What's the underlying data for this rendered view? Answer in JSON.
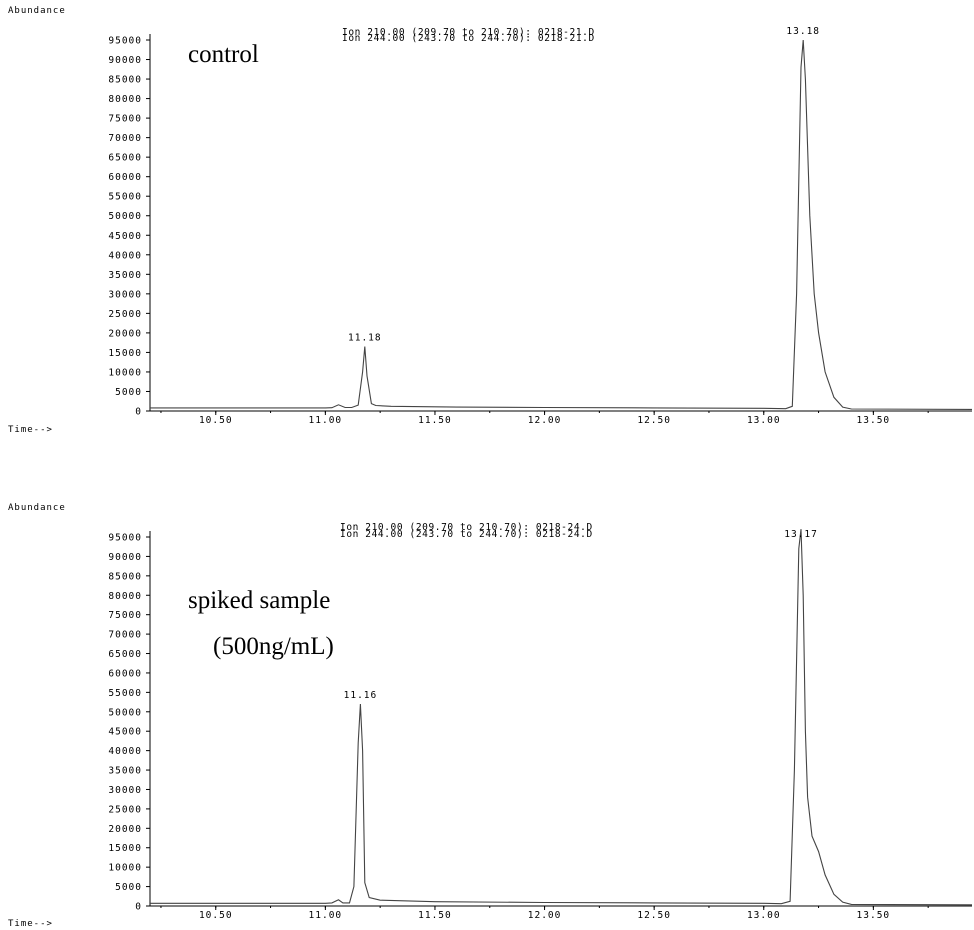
{
  "chart_data": [
    {
      "type": "line",
      "ylabel": "Abundance",
      "xlabel": "Time-->",
      "annotation": [
        "control"
      ],
      "ion_labels": [
        "Ion 210.00 (209.70 to 210.70): 0218-21.D",
        "Ion 244.00 (243.70 to 244.70): 0218-21.D"
      ],
      "peak_labels": [
        {
          "label": "11.18",
          "x": 11.18,
          "y": 16500
        },
        {
          "label": "13.18",
          "x": 13.18,
          "y": 95000
        }
      ],
      "xlim": [
        10.2,
        13.95
      ],
      "ylim": [
        0,
        97000
      ],
      "x_ticks": [
        10.5,
        11.0,
        11.5,
        12.0,
        12.5,
        13.0,
        13.5
      ],
      "x_tick_labels": [
        "10.50",
        "11.00",
        "11.50",
        "12.00",
        "12.50",
        "13.00",
        "13.50"
      ],
      "y_ticks": [
        0,
        5000,
        10000,
        15000,
        20000,
        25000,
        30000,
        35000,
        40000,
        45000,
        50000,
        55000,
        60000,
        65000,
        70000,
        75000,
        80000,
        85000,
        90000,
        95000
      ],
      "y_tick_labels": [
        "0",
        "5000",
        "10000",
        "15000",
        "20000",
        "25000",
        "30000",
        "35000",
        "40000",
        "45000",
        "50000",
        "55000",
        "60000",
        "65000",
        "70000",
        "75000",
        "80000",
        "85000",
        "90000",
        "95000"
      ],
      "series": [
        {
          "x": [
            10.2,
            11.0,
            11.03,
            11.06,
            11.09,
            11.12,
            11.15,
            11.17,
            11.18,
            11.19,
            11.21,
            11.23,
            11.3,
            11.6,
            12.0,
            12.5,
            13.0,
            13.1,
            13.13,
            13.15,
            13.17,
            13.18,
            13.19,
            13.21,
            13.23,
            13.25,
            13.28,
            13.32,
            13.36,
            13.4,
            13.95
          ],
          "y": [
            800,
            800,
            850,
            1600,
            900,
            900,
            1500,
            10000,
            16500,
            9000,
            1900,
            1400,
            1200,
            1000,
            900,
            800,
            700,
            600,
            1200,
            30000,
            88000,
            95000,
            85000,
            50000,
            30000,
            20000,
            10000,
            3500,
            1000,
            500,
            400
          ]
        }
      ]
    },
    {
      "type": "line",
      "ylabel": "Abundance",
      "xlabel": "Time-->",
      "annotation": [
        "spiked sample",
        "(500ng/mL)"
      ],
      "ion_labels": [
        "Ion 210.00 (209.70 to 210.70): 0218-24.D",
        "Ion 244.00 (243.70 to 244.70): 0218-24.D"
      ],
      "peak_labels": [
        {
          "label": "11.16",
          "x": 11.16,
          "y": 52000
        },
        {
          "label": "13.17",
          "x": 13.17,
          "y": 97000
        }
      ],
      "xlim": [
        10.2,
        13.95
      ],
      "ylim": [
        0,
        97000
      ],
      "x_ticks": [
        10.5,
        11.0,
        11.5,
        12.0,
        12.5,
        13.0,
        13.5
      ],
      "x_tick_labels": [
        "10.50",
        "11.00",
        "11.50",
        "12.00",
        "12.50",
        "13.00",
        "13.50"
      ],
      "y_ticks": [
        0,
        5000,
        10000,
        15000,
        20000,
        25000,
        30000,
        35000,
        40000,
        45000,
        50000,
        55000,
        60000,
        65000,
        70000,
        75000,
        80000,
        85000,
        90000,
        95000
      ],
      "y_tick_labels": [
        "0",
        "5000",
        "10000",
        "15000",
        "20000",
        "25000",
        "30000",
        "35000",
        "40000",
        "45000",
        "50000",
        "55000",
        "60000",
        "65000",
        "70000",
        "75000",
        "80000",
        "85000",
        "90000",
        "95000"
      ],
      "series": [
        {
          "x": [
            10.2,
            11.0,
            11.03,
            11.06,
            11.08,
            11.11,
            11.13,
            11.15,
            11.16,
            11.17,
            11.18,
            11.2,
            11.25,
            11.5,
            12.0,
            12.5,
            13.0,
            13.08,
            13.12,
            13.14,
            13.16,
            13.17,
            13.18,
            13.19,
            13.2,
            13.22,
            13.25,
            13.28,
            13.32,
            13.36,
            13.4,
            13.95
          ],
          "y": [
            700,
            700,
            800,
            1600,
            800,
            800,
            5000,
            42000,
            52000,
            40000,
            6000,
            2200,
            1500,
            1100,
            900,
            800,
            700,
            600,
            1200,
            35000,
            92000,
            97000,
            80000,
            45000,
            28000,
            18000,
            14000,
            8000,
            3000,
            1000,
            400,
            300
          ]
        }
      ]
    }
  ]
}
